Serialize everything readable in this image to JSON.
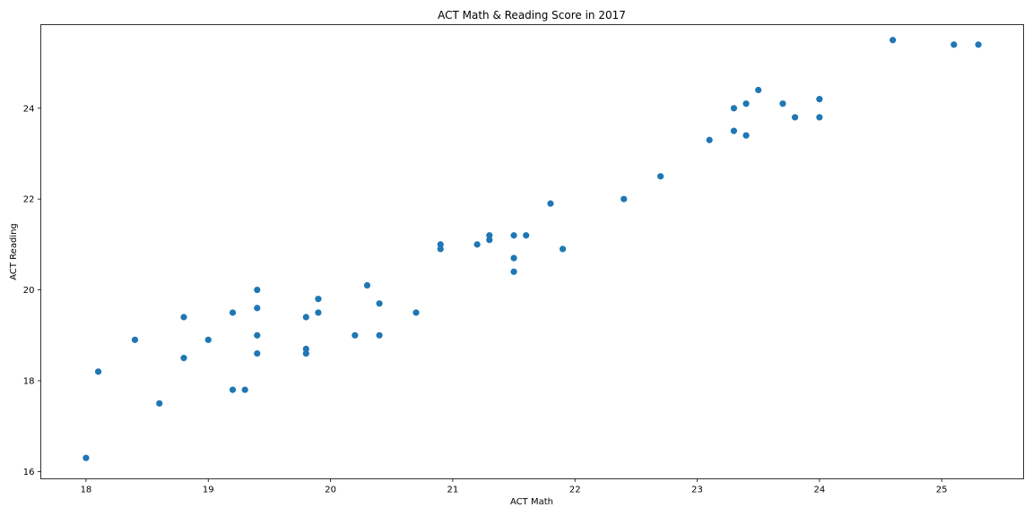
{
  "chart_data": {
    "type": "scatter",
    "title": "ACT Math & Reading Score in 2017",
    "xlabel": "ACT Math",
    "ylabel": "ACT Reading",
    "xlim": [
      17.63,
      25.67
    ],
    "ylim": [
      15.84,
      25.84
    ],
    "xticks": [
      18,
      19,
      20,
      21,
      22,
      23,
      24,
      25
    ],
    "yticks": [
      16,
      18,
      20,
      22,
      24
    ],
    "grid": false,
    "legend": "none",
    "color": "#1f77b4",
    "series": [
      {
        "points": [
          [
            18.0,
            16.3
          ],
          [
            18.1,
            18.2
          ],
          [
            18.4,
            18.9
          ],
          [
            18.6,
            17.5
          ],
          [
            18.8,
            19.4
          ],
          [
            18.8,
            18.5
          ],
          [
            19.0,
            18.9
          ],
          [
            19.2,
            19.5
          ],
          [
            19.2,
            17.8
          ],
          [
            19.3,
            17.8
          ],
          [
            19.4,
            20.0
          ],
          [
            19.4,
            19.6
          ],
          [
            19.4,
            19.0
          ],
          [
            19.4,
            18.6
          ],
          [
            19.8,
            19.4
          ],
          [
            19.8,
            18.7
          ],
          [
            19.8,
            18.6
          ],
          [
            19.9,
            19.8
          ],
          [
            19.9,
            19.5
          ],
          [
            20.2,
            19.0
          ],
          [
            20.3,
            20.1
          ],
          [
            20.4,
            19.7
          ],
          [
            20.4,
            19.0
          ],
          [
            20.7,
            19.5
          ],
          [
            20.9,
            21.0
          ],
          [
            20.9,
            20.9
          ],
          [
            21.2,
            21.0
          ],
          [
            21.3,
            21.2
          ],
          [
            21.3,
            21.1
          ],
          [
            21.5,
            21.2
          ],
          [
            21.5,
            20.7
          ],
          [
            21.5,
            20.4
          ],
          [
            21.6,
            21.2
          ],
          [
            21.8,
            21.9
          ],
          [
            21.9,
            20.9
          ],
          [
            22.4,
            22.0
          ],
          [
            22.7,
            22.5
          ],
          [
            23.1,
            23.3
          ],
          [
            23.3,
            24.0
          ],
          [
            23.3,
            23.5
          ],
          [
            23.4,
            24.1
          ],
          [
            23.4,
            23.4
          ],
          [
            23.5,
            24.4
          ],
          [
            23.7,
            24.1
          ],
          [
            23.8,
            23.8
          ],
          [
            24.0,
            24.2
          ],
          [
            24.0,
            23.8
          ],
          [
            24.6,
            25.5
          ],
          [
            25.1,
            25.4
          ],
          [
            25.3,
            25.4
          ]
        ]
      }
    ]
  }
}
